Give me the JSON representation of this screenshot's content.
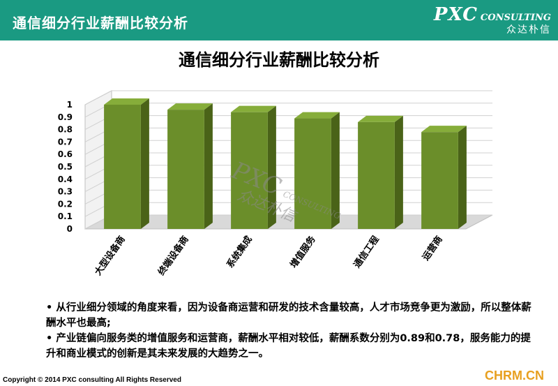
{
  "header": {
    "title": "通信细分行业薪酬比较分析",
    "brand_main": "PXC",
    "brand_sub": "CONSULTING",
    "brand_cn": "众达朴信"
  },
  "colors": {
    "header_bg": "#1a9a82",
    "bar_front": "#6b8e2a",
    "bar_side": "#4a6318",
    "bar_top": "#86ad3a",
    "site_color": "#e8a020"
  },
  "chart_data": {
    "type": "bar",
    "title": "通信细分行业薪酬比较分析",
    "categories": [
      "大型设备商",
      "终端设备商",
      "系统集成",
      "增值服务",
      "通信工程",
      "运营商"
    ],
    "values": [
      1.0,
      0.96,
      0.94,
      0.89,
      0.86,
      0.78
    ],
    "ylim": [
      0,
      1
    ],
    "yticks": [
      "0",
      "0.1",
      "0.2",
      "0.3",
      "0.4",
      "0.5",
      "0.6",
      "0.7",
      "0.8",
      "0.9",
      "1"
    ],
    "grid": true,
    "style": "3d",
    "watermark_main": "PXC",
    "watermark_sub": "CONSULTING",
    "watermark_cn": "众达朴信"
  },
  "bullets": [
    "• 从行业细分领域的角度来看，因为设备商运营和研发的技术含量较高，人才市场竞争更为激励，所以整体薪酬水平也最高;",
    "• 产业链偏向服务类的增值服务和运营商，薪酬水平相对较低，薪酬系数分别为0.89和0.78，服务能力的提升和商业模式的创新是其未来发展的大趋势之一。"
  ],
  "footer": {
    "copyright": "Copyright © 2014  PXC consulting All Rights Reserved",
    "site": "CHRM.CN"
  }
}
